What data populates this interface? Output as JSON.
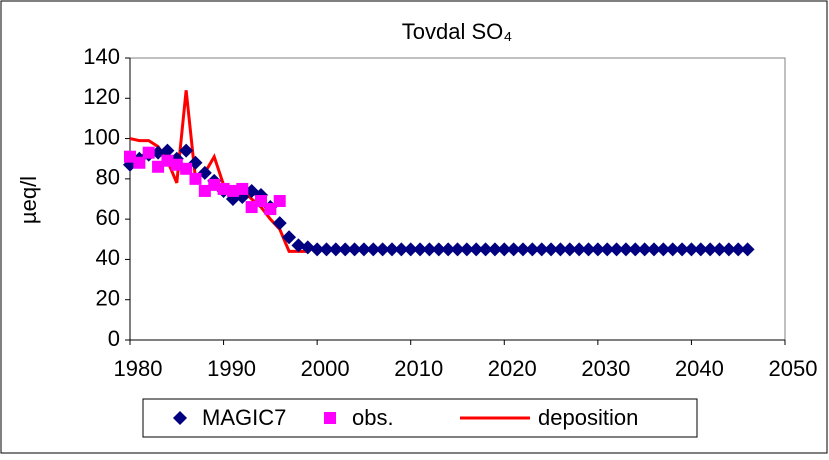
{
  "chart_data": {
    "type": "scatter",
    "title": "Tovdal SO₄",
    "y_label": "µeq/l",
    "xlim": [
      1980,
      2050
    ],
    "xticks": [
      1980,
      1990,
      2000,
      2010,
      2020,
      2030,
      2040,
      2050
    ],
    "ylim": [
      0,
      140
    ],
    "yticks": [
      0,
      20,
      40,
      60,
      80,
      100,
      120,
      140
    ],
    "grid": false,
    "legend": "bottom",
    "series": [
      {
        "name": "MAGIC7",
        "color": "#000080",
        "marker": "diamond",
        "x": [
          1980,
          1981,
          1982,
          1983,
          1984,
          1985,
          1986,
          1987,
          1988,
          1989,
          1990,
          1991,
          1992,
          1993,
          1994,
          1995,
          1996,
          1997,
          1998,
          1999,
          2000,
          2001,
          2002,
          2003,
          2004,
          2005,
          2006,
          2007,
          2008,
          2009,
          2010,
          2011,
          2012,
          2013,
          2014,
          2015,
          2016,
          2017,
          2018,
          2019,
          2020,
          2021,
          2022,
          2023,
          2024,
          2025,
          2026,
          2027,
          2028,
          2029,
          2030,
          2031,
          2032,
          2033,
          2034,
          2035,
          2036,
          2037,
          2038,
          2039,
          2040,
          2041,
          2042,
          2043,
          2044,
          2045,
          2046
        ],
        "values": [
          87,
          90,
          92,
          93,
          94,
          90,
          94,
          88,
          83,
          79,
          74,
          70,
          71,
          74,
          72,
          66,
          58,
          51,
          47,
          46,
          45,
          45,
          45,
          45,
          45,
          45,
          45,
          45,
          45,
          45,
          45,
          45,
          45,
          45,
          45,
          45,
          45,
          45,
          45,
          45,
          45,
          45,
          45,
          45,
          45,
          45,
          45,
          45,
          45,
          45,
          45,
          45,
          45,
          45,
          45,
          45,
          45,
          45,
          45,
          45,
          45,
          45,
          45,
          45,
          45,
          45,
          45
        ]
      },
      {
        "name": "obs.",
        "color": "#ff00ff",
        "marker": "square",
        "x": [
          1980,
          1981,
          1982,
          1983,
          1984,
          1985,
          1986,
          1987,
          1988,
          1989,
          1990,
          1991,
          1992,
          1993,
          1994,
          1995,
          1996
        ],
        "values": [
          91,
          88,
          93,
          86,
          89,
          87,
          85,
          80,
          74,
          77,
          75,
          74,
          75,
          66,
          69,
          65,
          69
        ]
      },
      {
        "name": "deposition",
        "color": "#ff0000",
        "marker": "line",
        "x": [
          1980,
          1981,
          1982,
          1983,
          1984,
          1985,
          1986,
          1987,
          1988,
          1989,
          1990,
          1991,
          1992,
          1993,
          1994,
          1995,
          1996,
          1997,
          1998,
          1999
        ],
        "values": [
          100,
          99,
          99,
          96,
          89,
          78,
          124,
          80,
          83,
          91,
          77,
          68,
          75,
          70,
          66,
          60,
          55,
          44,
          44,
          44
        ]
      }
    ]
  }
}
